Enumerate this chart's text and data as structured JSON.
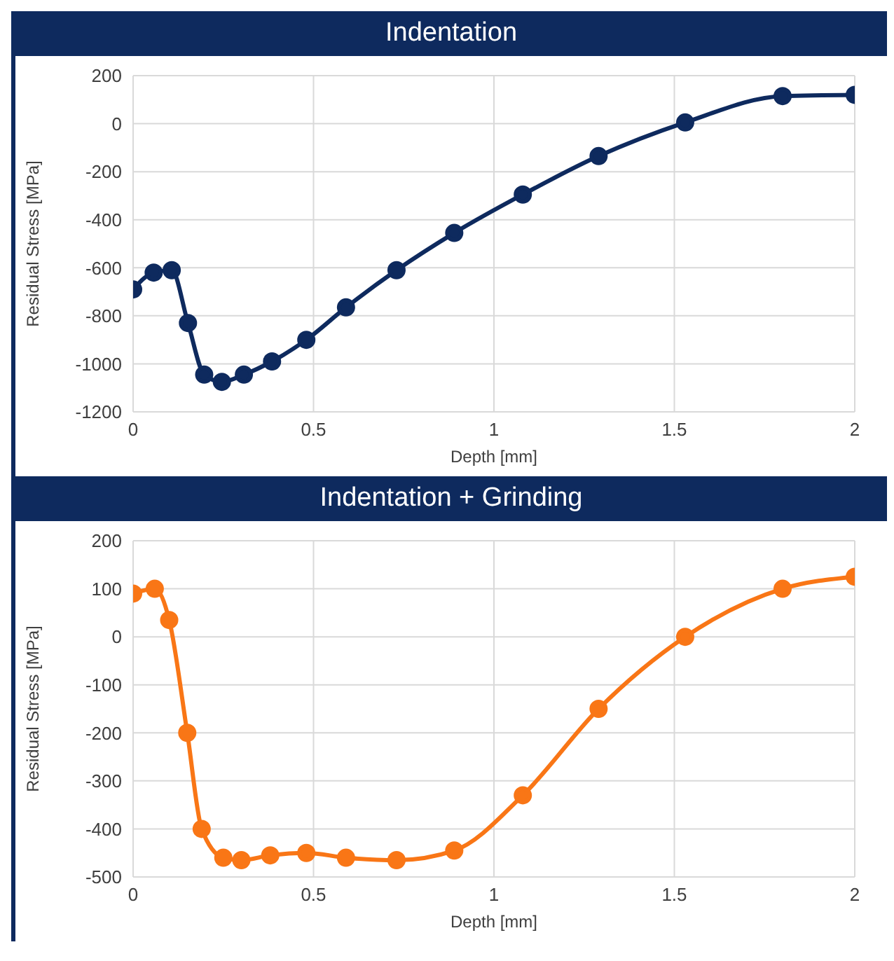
{
  "chart_data": [
    {
      "type": "line",
      "title": "Indentation",
      "xlabel": "Depth [mm]",
      "ylabel": "Residual Stress [MPa]",
      "x": [
        0,
        0.057,
        0.107,
        0.152,
        0.197,
        0.246,
        0.307,
        0.385,
        0.48,
        0.59,
        0.73,
        0.89,
        1.08,
        1.29,
        1.53,
        1.8,
        2.0
      ],
      "series": [
        {
          "color": "#0e2a5e",
          "values": [
            -690,
            -620,
            -610,
            -830,
            -1045,
            -1075,
            -1045,
            -990,
            -900,
            -765,
            -610,
            -455,
            -295,
            -135,
            5,
            115,
            120
          ]
        }
      ],
      "xlim": [
        0,
        2
      ],
      "xticks": [
        0,
        0.5,
        1,
        1.5,
        2
      ],
      "ylim": [
        -1200,
        200
      ],
      "yticks": [
        -1200,
        -1000,
        -800,
        -600,
        -400,
        -200,
        0,
        200
      ],
      "grid": true,
      "marker": "circle",
      "line_style": "solid"
    },
    {
      "type": "line",
      "title": "Indentation + Grinding",
      "xlabel": "Depth [mm]",
      "ylabel": "Residual Stress [MPa]",
      "x": [
        0,
        0.06,
        0.1,
        0.15,
        0.19,
        0.25,
        0.3,
        0.38,
        0.48,
        0.59,
        0.73,
        0.89,
        1.08,
        1.29,
        1.53,
        1.8,
        2.0
      ],
      "series": [
        {
          "color": "#f97616",
          "values": [
            90,
            100,
            35,
            -200,
            -400,
            -460,
            -465,
            -455,
            -450,
            -460,
            -465,
            -445,
            -330,
            -150,
            0,
            100,
            125
          ]
        }
      ],
      "xlim": [
        0,
        2
      ],
      "xticks": [
        0,
        0.5,
        1,
        1.5,
        2
      ],
      "ylim": [
        -500,
        200
      ],
      "yticks": [
        -500,
        -400,
        -300,
        -200,
        -100,
        0,
        100,
        200
      ],
      "grid": true,
      "marker": "circle",
      "line_style": "solid"
    }
  ]
}
